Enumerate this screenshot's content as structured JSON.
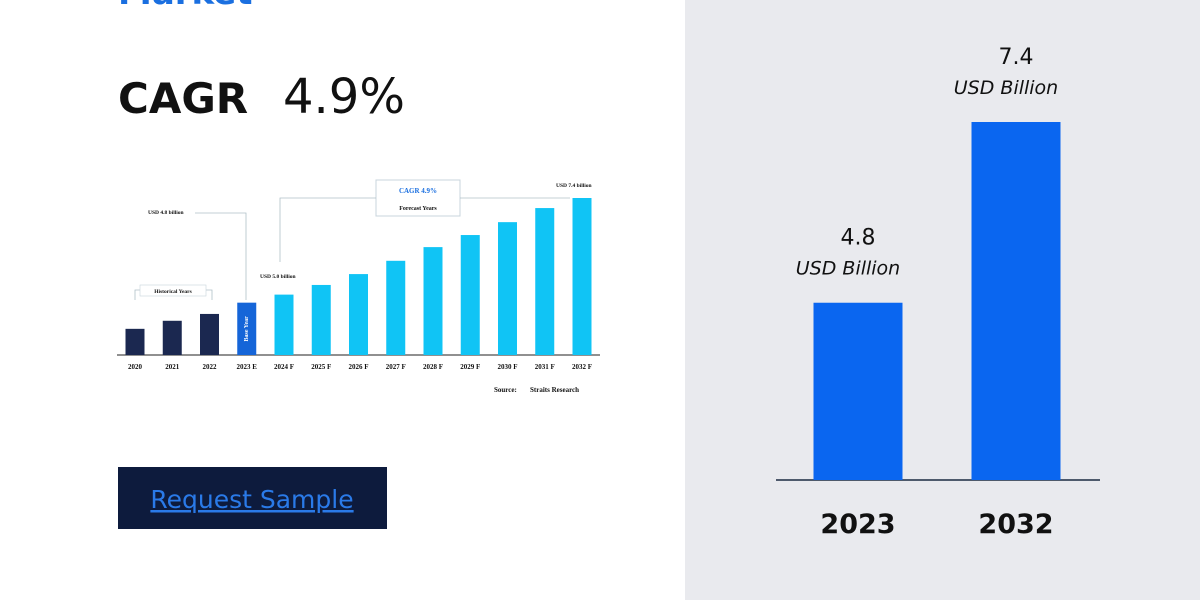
{
  "header": {
    "title": "Market",
    "cagr_label": "CAGR",
    "cagr_value": "4.9%"
  },
  "button": "Request Sample",
  "chart_data": [
    {
      "type": "bar",
      "categories": [
        "2020",
        "2021",
        "2022",
        "2023 E",
        "2024 F",
        "2025 F",
        "2026 F",
        "2027 F",
        "2028 F",
        "2029 F",
        "2030 F",
        "2031 F",
        "2032 F"
      ],
      "values": [
        4.15,
        4.35,
        4.52,
        4.8,
        5.0,
        5.24,
        5.51,
        5.84,
        6.18,
        6.48,
        6.8,
        7.15,
        7.4
      ],
      "colors": [
        "#1b2850",
        "#1b2850",
        "#1b2850",
        "#1565d8",
        "#10c4f5",
        "#10c4f5",
        "#10c4f5",
        "#10c4f5",
        "#10c4f5",
        "#10c4f5",
        "#10c4f5",
        "#10c4f5",
        "#10c4f5"
      ],
      "ylim": [
        3.5,
        7.4
      ],
      "annotations": [
        "USD 4.8 billion",
        "CAGR 4.9%",
        "Forecast Years",
        "USD 7.4 billion",
        "Historical Years",
        "USD 5.0 billion",
        "Base Year",
        "Source:",
        "Straits Research"
      ]
    },
    {
      "type": "bar",
      "categories": [
        "2023",
        "2032"
      ],
      "values": [
        4.8,
        7.4
      ],
      "color": "#0a66f0",
      "unit_label": "USD Billion",
      "ylim": [
        2.25,
        7.4
      ]
    }
  ]
}
